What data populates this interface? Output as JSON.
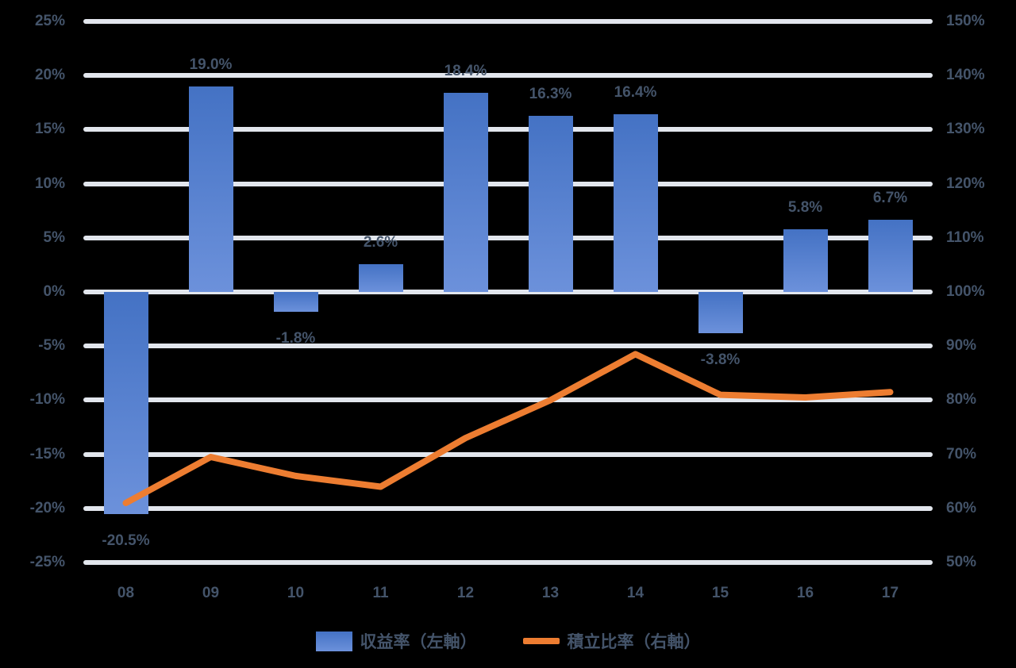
{
  "chart_data": {
    "type": "bar+line",
    "title": "",
    "categories": [
      "08",
      "09",
      "10",
      "11",
      "12",
      "13",
      "14",
      "15",
      "16",
      "17"
    ],
    "series": [
      {
        "name": "収益率（左軸）",
        "type": "bar",
        "axis": "left",
        "values": [
          -20.5,
          19.0,
          -1.8,
          2.6,
          18.4,
          16.3,
          16.4,
          -3.8,
          5.8,
          6.7
        ],
        "labels": [
          "-20.5%",
          "19.0%",
          "-1.8%",
          "2.6%",
          "18.4%",
          "16.3%",
          "16.4%",
          "-3.8%",
          "5.8%",
          "6.7%"
        ]
      },
      {
        "name": "積立比率（右軸）",
        "type": "line",
        "axis": "right",
        "values": [
          61,
          69.5,
          66,
          64,
          73,
          80,
          88.5,
          81,
          80.5,
          81.5
        ]
      }
    ],
    "left_axis": {
      "min": -25,
      "max": 25,
      "step": 5,
      "ticks": [
        "25%",
        "20%",
        "15%",
        "10%",
        "5%",
        "0%",
        "-5%",
        "-10%",
        "-15%",
        "-20%",
        "-25%"
      ]
    },
    "right_axis": {
      "min": 50,
      "max": 150,
      "step": 10,
      "ticks": [
        "150%",
        "140%",
        "130%",
        "120%",
        "110%",
        "100%",
        "90%",
        "80%",
        "70%",
        "60%",
        "50%"
      ]
    },
    "legend": [
      {
        "label": "収益率（左軸）",
        "swatch": "bar"
      },
      {
        "label": "積立比率（右軸）",
        "swatch": "line"
      }
    ],
    "grid": true,
    "legend_position": "bottom",
    "colors": {
      "bar_top": "#4472C4",
      "bar_bottom": "#6C91DB",
      "line": "#ED7D31",
      "text": "#44546A",
      "gridline": "#E2E6ED",
      "background": "#000000"
    }
  }
}
